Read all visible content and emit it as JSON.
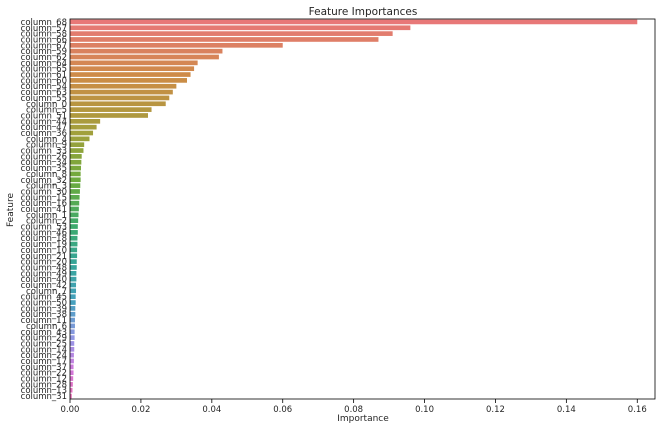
{
  "chart_data": {
    "type": "bar",
    "orientation": "horizontal",
    "title": "Feature Importances",
    "xlabel": "Importance",
    "ylabel": "Feature",
    "xlim": [
      0,
      0.165
    ],
    "xticks": [
      0.0,
      0.02,
      0.04,
      0.06,
      0.08,
      0.1,
      0.12,
      0.14,
      0.16
    ],
    "xtick_labels": [
      "0.00",
      "0.02",
      "0.04",
      "0.06",
      "0.08",
      "0.10",
      "0.12",
      "0.14",
      "0.16"
    ],
    "grid": false,
    "legend": "none",
    "categories": [
      "column_68",
      "column_57",
      "column_58",
      "column_66",
      "column_67",
      "column_59",
      "column_62",
      "column_64",
      "column_65",
      "column_61",
      "column_60",
      "column_54",
      "column_63",
      "column_55",
      "column_0",
      "column_5",
      "column_51",
      "column_44",
      "column_47",
      "column_36",
      "column_4",
      "column_9",
      "column_33",
      "column_26",
      "column_34",
      "column_35",
      "column_8",
      "column_32",
      "column_3",
      "column_30",
      "column_15",
      "column_16",
      "column_41",
      "column_1",
      "column_2",
      "column_53",
      "column_46",
      "column_18",
      "column_19",
      "column_10",
      "column_21",
      "column_20",
      "column_48",
      "column_49",
      "column_40",
      "column_42",
      "column_7",
      "column_45",
      "column_50",
      "column_39",
      "column_38",
      "column_11",
      "column_6",
      "column_43",
      "column_29",
      "column_25",
      "column_14",
      "column_24",
      "column_17",
      "column_37",
      "column_22",
      "column_12",
      "column_28",
      "column_13",
      "column_31"
    ],
    "values": [
      0.16,
      0.096,
      0.091,
      0.087,
      0.06,
      0.043,
      0.042,
      0.036,
      0.035,
      0.034,
      0.033,
      0.03,
      0.029,
      0.028,
      0.027,
      0.023,
      0.022,
      0.0085,
      0.0075,
      0.0065,
      0.0055,
      0.004,
      0.0038,
      0.0033,
      0.0032,
      0.0031,
      0.003,
      0.003,
      0.0029,
      0.0028,
      0.0027,
      0.0026,
      0.0025,
      0.0024,
      0.0023,
      0.0022,
      0.0022,
      0.0021,
      0.0021,
      0.002,
      0.002,
      0.0019,
      0.0019,
      0.0018,
      0.0018,
      0.0017,
      0.0017,
      0.0016,
      0.0016,
      0.0015,
      0.0015,
      0.0014,
      0.0014,
      0.0013,
      0.0013,
      0.0012,
      0.0012,
      0.0011,
      0.0011,
      0.001,
      0.001,
      0.0009,
      0.0008,
      0.0007,
      0.0005
    ],
    "palette": "husl",
    "colors": {
      "axis": "#000000",
      "text": "#262626"
    }
  }
}
